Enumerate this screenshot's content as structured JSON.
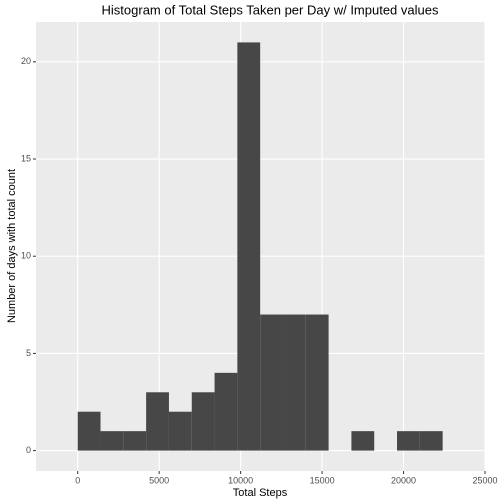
{
  "chart_data": {
    "type": "histogram",
    "title": "Histogram of Total Steps Taken per Day w/ Imputed values",
    "x_label": "Total Steps",
    "y_label": "Number of days with total count",
    "bins": [
      0,
      1400,
      2800,
      4200,
      5600,
      7000,
      8400,
      9800,
      11200,
      12600,
      14000,
      15400,
      16800,
      18200,
      19600,
      21000,
      22400
    ],
    "values": [
      2,
      1,
      1,
      3,
      2,
      3,
      4,
      21,
      7,
      7,
      7,
      0,
      1,
      0,
      1,
      1
    ],
    "color": "#474747",
    "xlim": [
      -2560,
      25000
    ],
    "ylim": [
      -1.05,
      22.05
    ],
    "xticks": [
      0,
      5000,
      10000,
      15000,
      20000,
      25000
    ],
    "yticks": [
      0,
      5,
      10,
      15,
      20
    ],
    "grid": true
  }
}
